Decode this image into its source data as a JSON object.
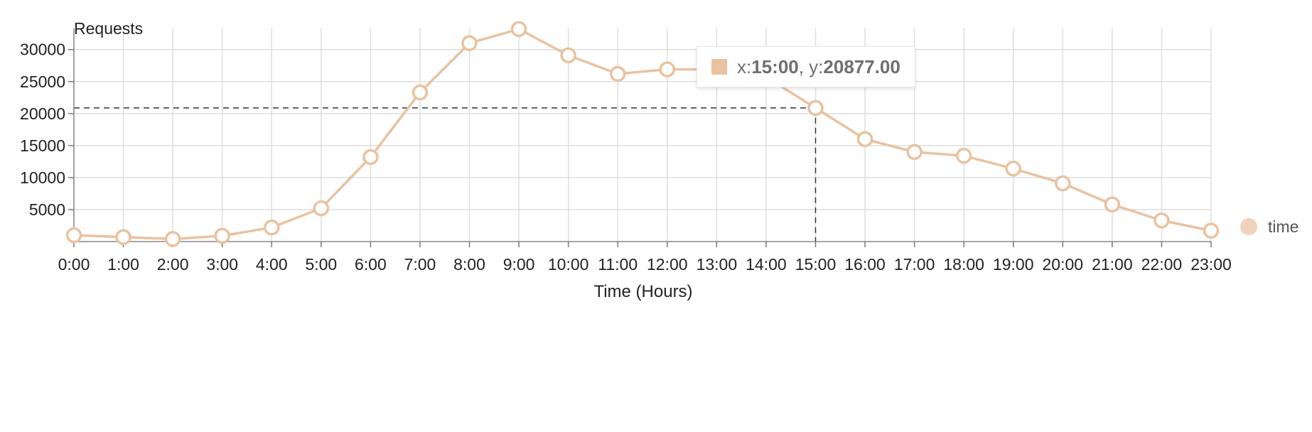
{
  "chart_data": {
    "type": "line",
    "ylabel": "Requests",
    "xlabel": "Time (Hours)",
    "categories": [
      "0:00",
      "1:00",
      "2:00",
      "3:00",
      "4:00",
      "5:00",
      "6:00",
      "7:00",
      "8:00",
      "9:00",
      "10:00",
      "11:00",
      "12:00",
      "13:00",
      "14:00",
      "15:00",
      "16:00",
      "17:00",
      "18:00",
      "19:00",
      "20:00",
      "21:00",
      "22:00",
      "23:00"
    ],
    "series": [
      {
        "name": "time",
        "color": "#e9c2a0",
        "values": [
          1000,
          700,
          400,
          900,
          2200,
          5200,
          13200,
          23300,
          31000,
          33200,
          29100,
          26200,
          26900,
          26900,
          25700,
          20877,
          16000,
          14000,
          13400,
          11400,
          9100,
          5800,
          3300,
          1700
        ]
      }
    ],
    "yticks": [
      5000,
      10000,
      15000,
      20000,
      25000,
      30000
    ],
    "ylim": [
      0,
      33300
    ],
    "grid": true,
    "legend_position": "right"
  },
  "tooltip": {
    "x_prefix": "x: ",
    "x_value": "15:00",
    "y_prefix": ", y: ",
    "y_value": "20877.00",
    "focus_index": 15
  }
}
